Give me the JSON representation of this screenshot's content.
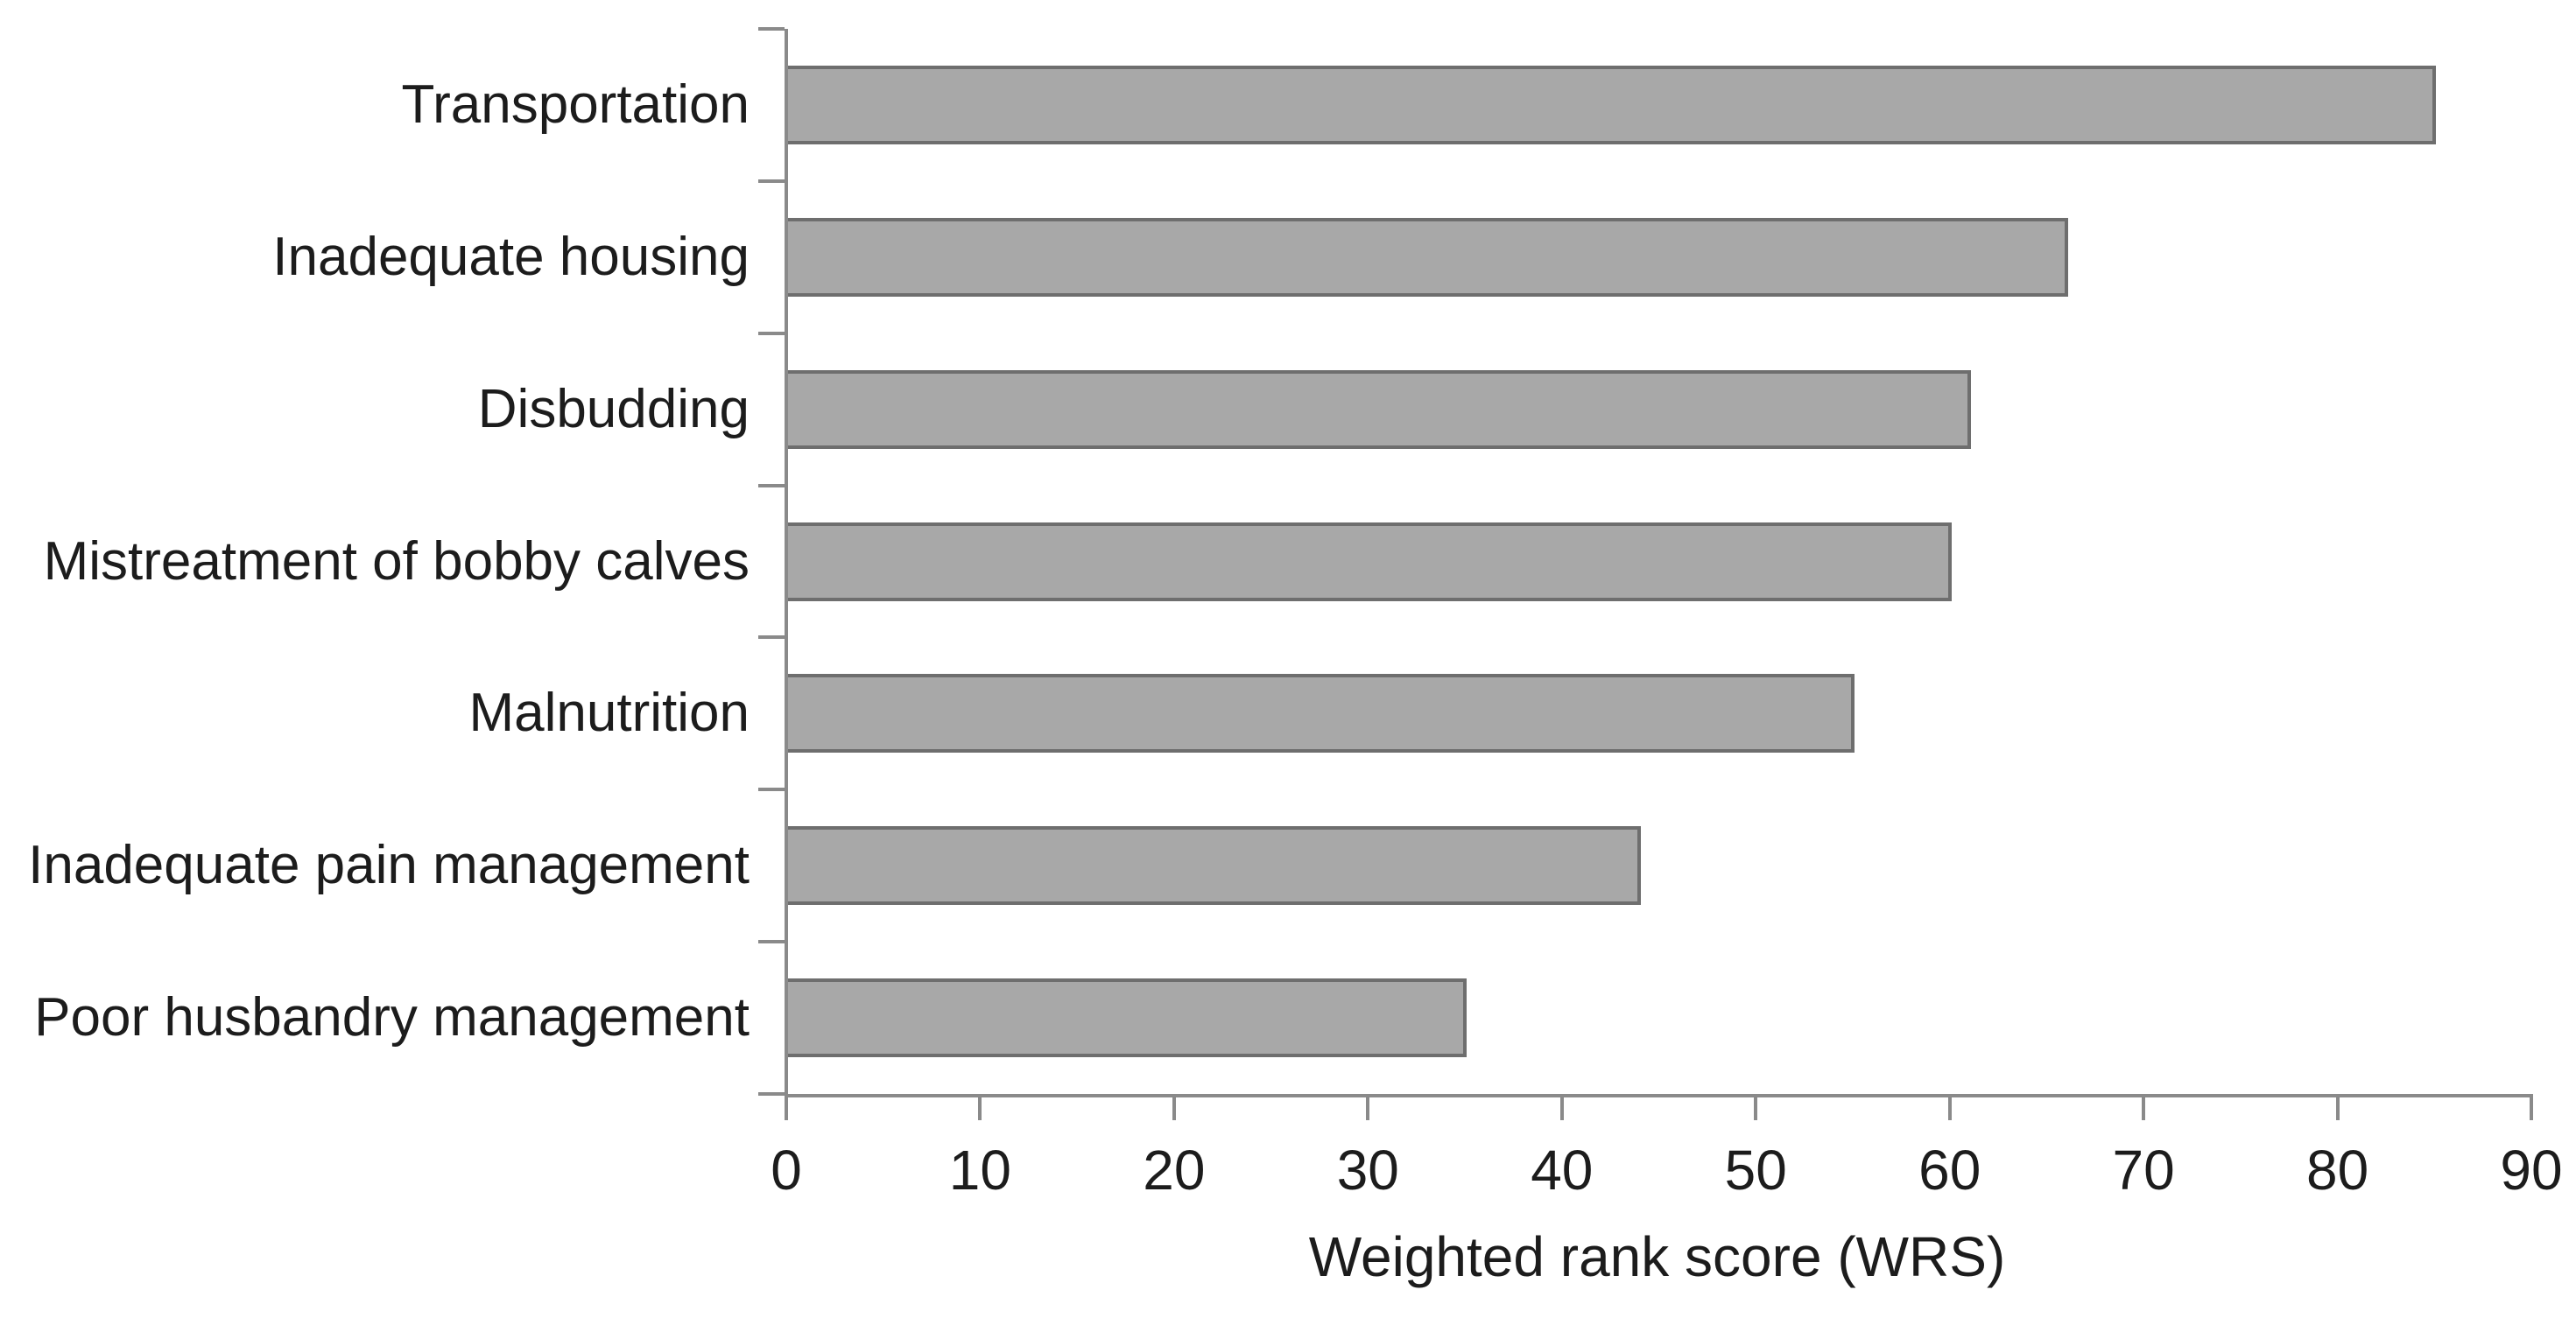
{
  "chart_data": {
    "type": "bar",
    "orientation": "horizontal",
    "title": "",
    "xlabel": "Weighted rank score (WRS)",
    "ylabel": "",
    "categories": [
      "Transportation",
      "Inadequate housing",
      "Disbudding",
      "Mistreatment of bobby calves",
      "Malnutrition",
      "Inadequate pain management",
      "Poor husbandry management"
    ],
    "values": [
      85,
      66,
      61,
      60,
      55,
      44,
      35
    ],
    "xlim": [
      0,
      90
    ],
    "xticks": [
      0,
      10,
      20,
      30,
      40,
      50,
      60,
      70,
      80,
      90
    ],
    "grid": false,
    "legend_position": "none",
    "colors": {
      "bar_fill": "#a8a8a8",
      "bar_border": "#6e6e6e",
      "axis": "#8a8a8a",
      "text": "#1c1c1c",
      "background": "#ffffff"
    }
  }
}
